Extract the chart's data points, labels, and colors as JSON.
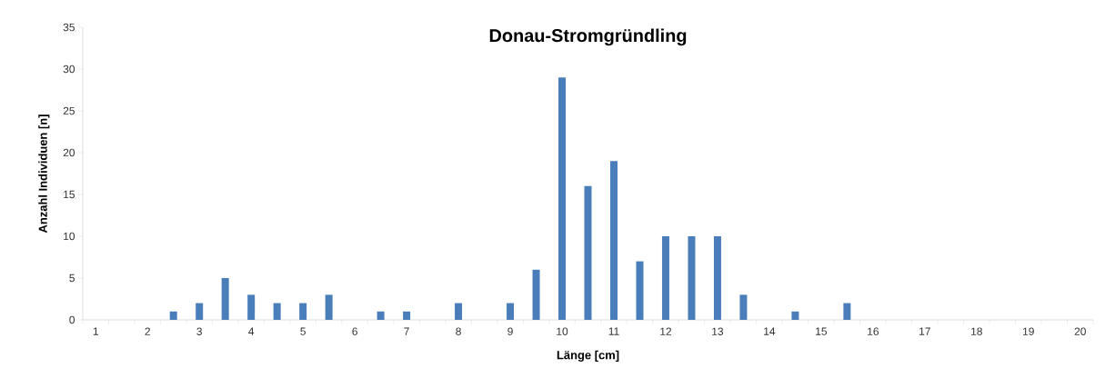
{
  "chart_data": {
    "type": "bar",
    "title": "Donau-Stromgründling",
    "xlabel": "Länge [cm]",
    "ylabel": "Anzahl Individuen [n]",
    "categories": [
      "1",
      null,
      "2",
      null,
      "3",
      null,
      "4",
      null,
      "5",
      null,
      "6",
      null,
      "7",
      null,
      "8",
      null,
      "9",
      null,
      "10",
      null,
      "11",
      null,
      "12",
      null,
      "13",
      null,
      "14",
      null,
      "15",
      null,
      "16",
      null,
      "17",
      null,
      "18",
      null,
      "19",
      null,
      "20"
    ],
    "values": [
      0,
      0,
      0,
      1,
      2,
      5,
      3,
      2,
      2,
      3,
      0,
      1,
      1,
      0,
      2,
      0,
      2,
      6,
      29,
      16,
      19,
      7,
      10,
      10,
      10,
      3,
      0,
      1,
      0,
      2,
      0,
      0,
      0,
      0,
      0,
      0,
      0,
      0,
      0
    ],
    "color": "#4a7ebb",
    "ylim": [
      0,
      35
    ],
    "yticks": [
      0,
      5,
      10,
      15,
      20,
      25,
      30,
      35
    ],
    "grid": false
  }
}
